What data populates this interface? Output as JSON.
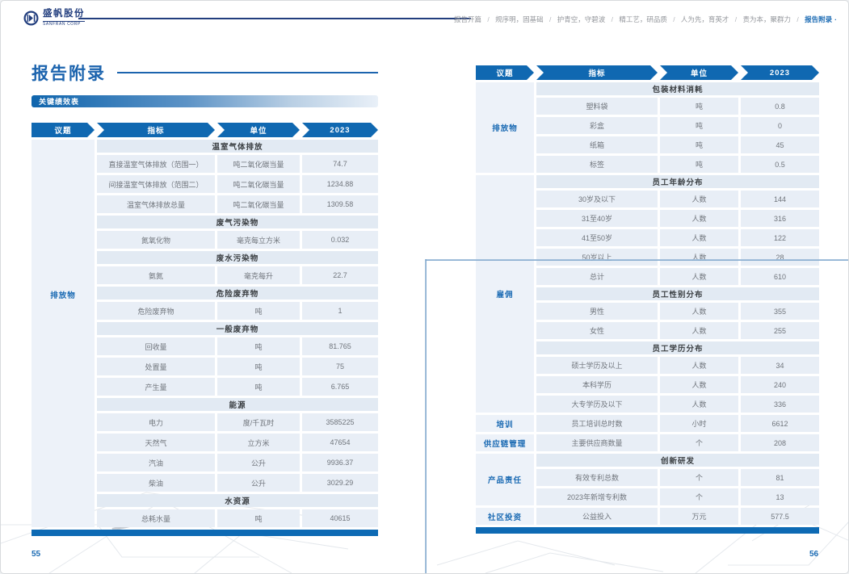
{
  "brand": {
    "name_cn": "盛帆股份",
    "name_en": "SANFRAN CORP"
  },
  "nav": {
    "separator": "/",
    "active_suffix": "·",
    "items": [
      {
        "label": "报告开篇",
        "active": false
      },
      {
        "label": "规序明，固基础",
        "active": false
      },
      {
        "label": "护青空，守碧波",
        "active": false
      },
      {
        "label": "精工艺，研品质",
        "active": false
      },
      {
        "label": "人为先，育英才",
        "active": false
      },
      {
        "label": "责为本，聚群力",
        "active": false
      },
      {
        "label": "报告附录",
        "active": true
      }
    ]
  },
  "colors": {
    "accent": "#1068b1",
    "navy": "#223e7e",
    "topic_blue": "#1a6ab3"
  },
  "left": {
    "title": "报告附录",
    "tag": "关键绩效表",
    "page_no": "55",
    "table": {
      "headers": [
        "议题",
        "指标",
        "单位",
        "2023"
      ],
      "topics": [
        {
          "label": "排放物",
          "rows": [
            {
              "t": "sec",
              "label": "温室气体排放"
            },
            {
              "t": "row",
              "indicator": "直接温室气体排放（范围一）",
              "unit": "吨二氧化碳当量",
              "value": "74.7"
            },
            {
              "t": "row",
              "indicator": "间接温室气体排放（范围二）",
              "unit": "吨二氧化碳当量",
              "value": "1234.88"
            },
            {
              "t": "row",
              "indicator": "温室气体排放总量",
              "unit": "吨二氧化碳当量",
              "value": "1309.58"
            },
            {
              "t": "sec",
              "label": "废气污染物"
            },
            {
              "t": "row",
              "indicator": "氮氧化物",
              "unit": "毫克每立方米",
              "value": "0.032"
            },
            {
              "t": "sec",
              "label": "废水污染物"
            },
            {
              "t": "row",
              "indicator": "氨氮",
              "unit": "毫克每升",
              "value": "22.7"
            },
            {
              "t": "sec",
              "label": "危险废弃物"
            },
            {
              "t": "row",
              "indicator": "危险废弃物",
              "unit": "吨",
              "value": "1"
            },
            {
              "t": "sec",
              "label": "一般废弃物"
            },
            {
              "t": "row",
              "indicator": "回收量",
              "unit": "吨",
              "value": "81.765"
            },
            {
              "t": "row",
              "indicator": "处置量",
              "unit": "吨",
              "value": "75"
            },
            {
              "t": "row",
              "indicator": "产生量",
              "unit": "吨",
              "value": "6.765"
            },
            {
              "t": "sec",
              "label": "能源"
            },
            {
              "t": "row",
              "indicator": "电力",
              "unit": "度/千瓦时",
              "value": "3585225"
            },
            {
              "t": "row",
              "indicator": "天然气",
              "unit": "立方米",
              "value": "47654"
            },
            {
              "t": "row",
              "indicator": "汽油",
              "unit": "公升",
              "value": "9936.37"
            },
            {
              "t": "row",
              "indicator": "柴油",
              "unit": "公升",
              "value": "3029.29"
            },
            {
              "t": "sec",
              "label": "水资源"
            },
            {
              "t": "row",
              "indicator": "总耗水量",
              "unit": "吨",
              "value": "40615"
            }
          ]
        }
      ]
    }
  },
  "right": {
    "page_no": "56",
    "table": {
      "headers": [
        "议题",
        "指标",
        "单位",
        "2023"
      ],
      "topics": [
        {
          "label": "排放物",
          "rows": [
            {
              "t": "sec",
              "label": "包装材料消耗"
            },
            {
              "t": "row",
              "indicator": "塑料袋",
              "unit": "吨",
              "value": "0.8"
            },
            {
              "t": "row",
              "indicator": "彩盒",
              "unit": "吨",
              "value": "0"
            },
            {
              "t": "row",
              "indicator": "纸箱",
              "unit": "吨",
              "value": "45"
            },
            {
              "t": "row",
              "indicator": "标签",
              "unit": "吨",
              "value": "0.5"
            }
          ]
        },
        {
          "label": "雇佣",
          "rows": [
            {
              "t": "sec",
              "label": "员工年龄分布"
            },
            {
              "t": "row",
              "indicator": "30岁及以下",
              "unit": "人数",
              "value": "144"
            },
            {
              "t": "row",
              "indicator": "31至40岁",
              "unit": "人数",
              "value": "316"
            },
            {
              "t": "row",
              "indicator": "41至50岁",
              "unit": "人数",
              "value": "122"
            },
            {
              "t": "row",
              "indicator": "50岁以上",
              "unit": "人数",
              "value": "28"
            },
            {
              "t": "row",
              "indicator": "总计",
              "unit": "人数",
              "value": "610"
            },
            {
              "t": "sec",
              "label": "员工性别分布"
            },
            {
              "t": "row",
              "indicator": "男性",
              "unit": "人数",
              "value": "355"
            },
            {
              "t": "row",
              "indicator": "女性",
              "unit": "人数",
              "value": "255"
            },
            {
              "t": "sec",
              "label": "员工学历分布"
            },
            {
              "t": "row",
              "indicator": "硕士学历及以上",
              "unit": "人数",
              "value": "34"
            },
            {
              "t": "row",
              "indicator": "本科学历",
              "unit": "人数",
              "value": "240"
            },
            {
              "t": "row",
              "indicator": "大专学历及以下",
              "unit": "人数",
              "value": "336"
            }
          ]
        },
        {
          "label": "培训",
          "rows": [
            {
              "t": "row",
              "indicator": "员工培训总时数",
              "unit": "小时",
              "value": "6612"
            }
          ]
        },
        {
          "label": "供应链管理",
          "rows": [
            {
              "t": "row",
              "indicator": "主要供应商数量",
              "unit": "个",
              "value": "208"
            }
          ]
        },
        {
          "label": "产品责任",
          "rows": [
            {
              "t": "sec",
              "label": "创新研发"
            },
            {
              "t": "row",
              "indicator": "有效专利总数",
              "unit": "个",
              "value": "81"
            },
            {
              "t": "row",
              "indicator": "2023年新增专利数",
              "unit": "个",
              "value": "13"
            }
          ]
        },
        {
          "label": "社区投资",
          "rows": [
            {
              "t": "row",
              "indicator": "公益投入",
              "unit": "万元",
              "value": "577.5"
            }
          ]
        }
      ]
    }
  }
}
